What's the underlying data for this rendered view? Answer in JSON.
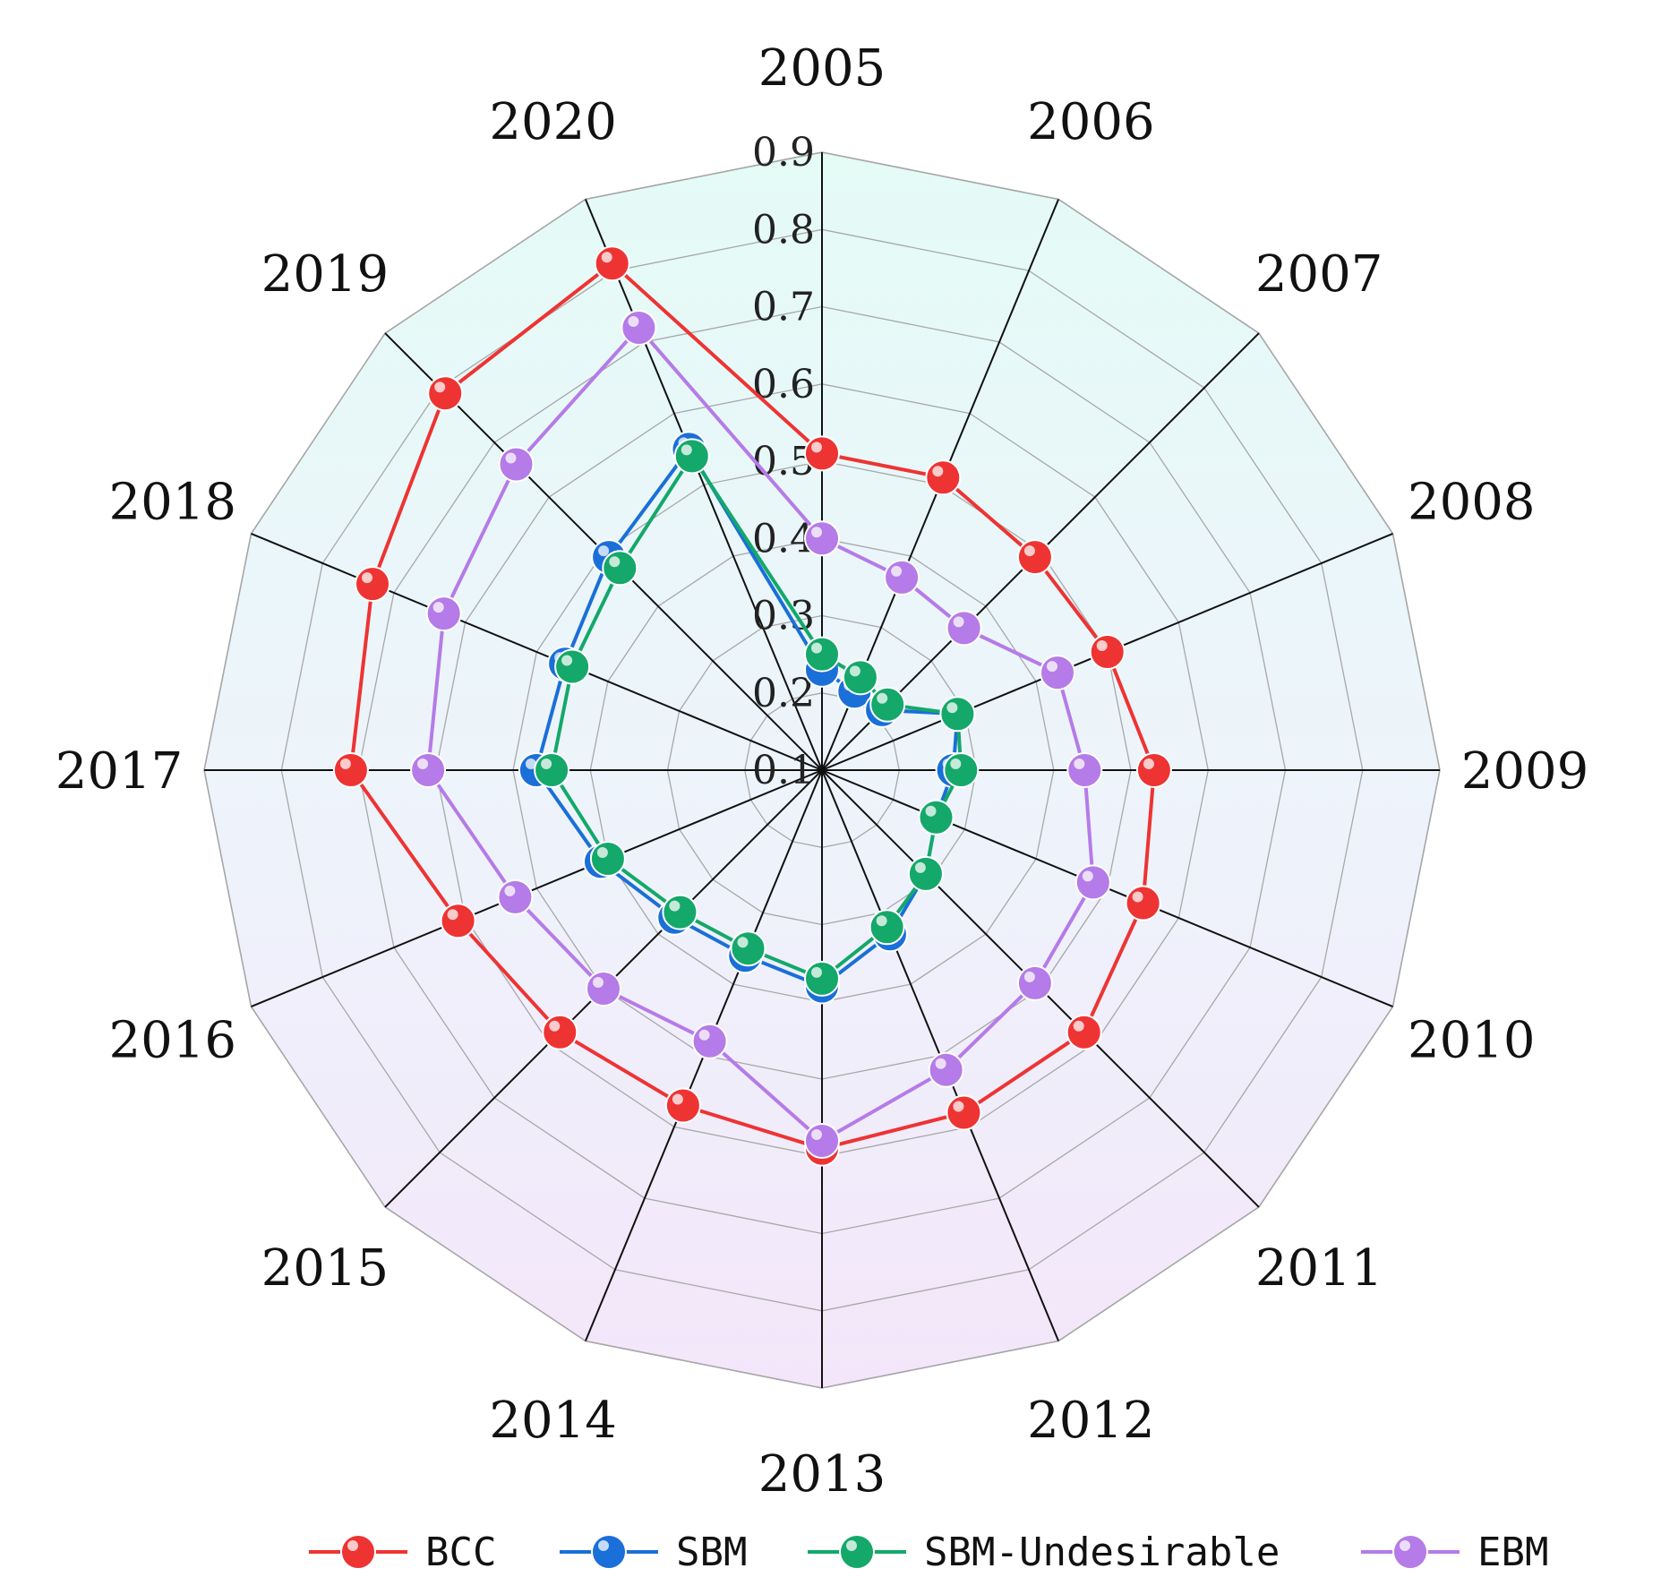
{
  "chart_data": {
    "type": "radar",
    "title": "",
    "categories": [
      "2005",
      "2006",
      "2007",
      "2008",
      "2009",
      "2010",
      "2011",
      "2012",
      "2013",
      "2014",
      "2015",
      "2016",
      "2017",
      "2018",
      "2019",
      "2020"
    ],
    "r_axis": {
      "min": 0.1,
      "max": 0.9,
      "ticks": [
        "0.1",
        "0.2",
        "0.3",
        "0.4",
        "0.5",
        "0.6",
        "0.7",
        "0.8",
        "0.9"
      ]
    },
    "grid": true,
    "legend_position": "bottom",
    "series": [
      {
        "name": "BCC",
        "color": "#ee3333",
        "values": [
          0.51,
          0.51,
          0.49,
          0.5,
          0.53,
          0.55,
          0.58,
          0.58,
          0.59,
          0.57,
          0.58,
          0.61,
          0.71,
          0.73,
          0.79,
          0.81
        ]
      },
      {
        "name": "SBM",
        "color": "#1a6fd9",
        "values": [
          0.23,
          0.21,
          0.21,
          0.29,
          0.27,
          0.26,
          0.29,
          0.33,
          0.38,
          0.36,
          0.37,
          0.41,
          0.47,
          0.46,
          0.49,
          0.55
        ]
      },
      {
        "name": "SBM-Undesirable",
        "color": "#14a86a",
        "values": [
          0.25,
          0.23,
          0.22,
          0.29,
          0.28,
          0.26,
          0.29,
          0.32,
          0.37,
          0.35,
          0.36,
          0.4,
          0.45,
          0.45,
          0.47,
          0.54
        ]
      },
      {
        "name": "EBM",
        "color": "#b57be8",
        "values": [
          0.4,
          0.37,
          0.36,
          0.43,
          0.44,
          0.48,
          0.49,
          0.52,
          0.58,
          0.48,
          0.5,
          0.53,
          0.61,
          0.63,
          0.66,
          0.72
        ]
      }
    ]
  }
}
